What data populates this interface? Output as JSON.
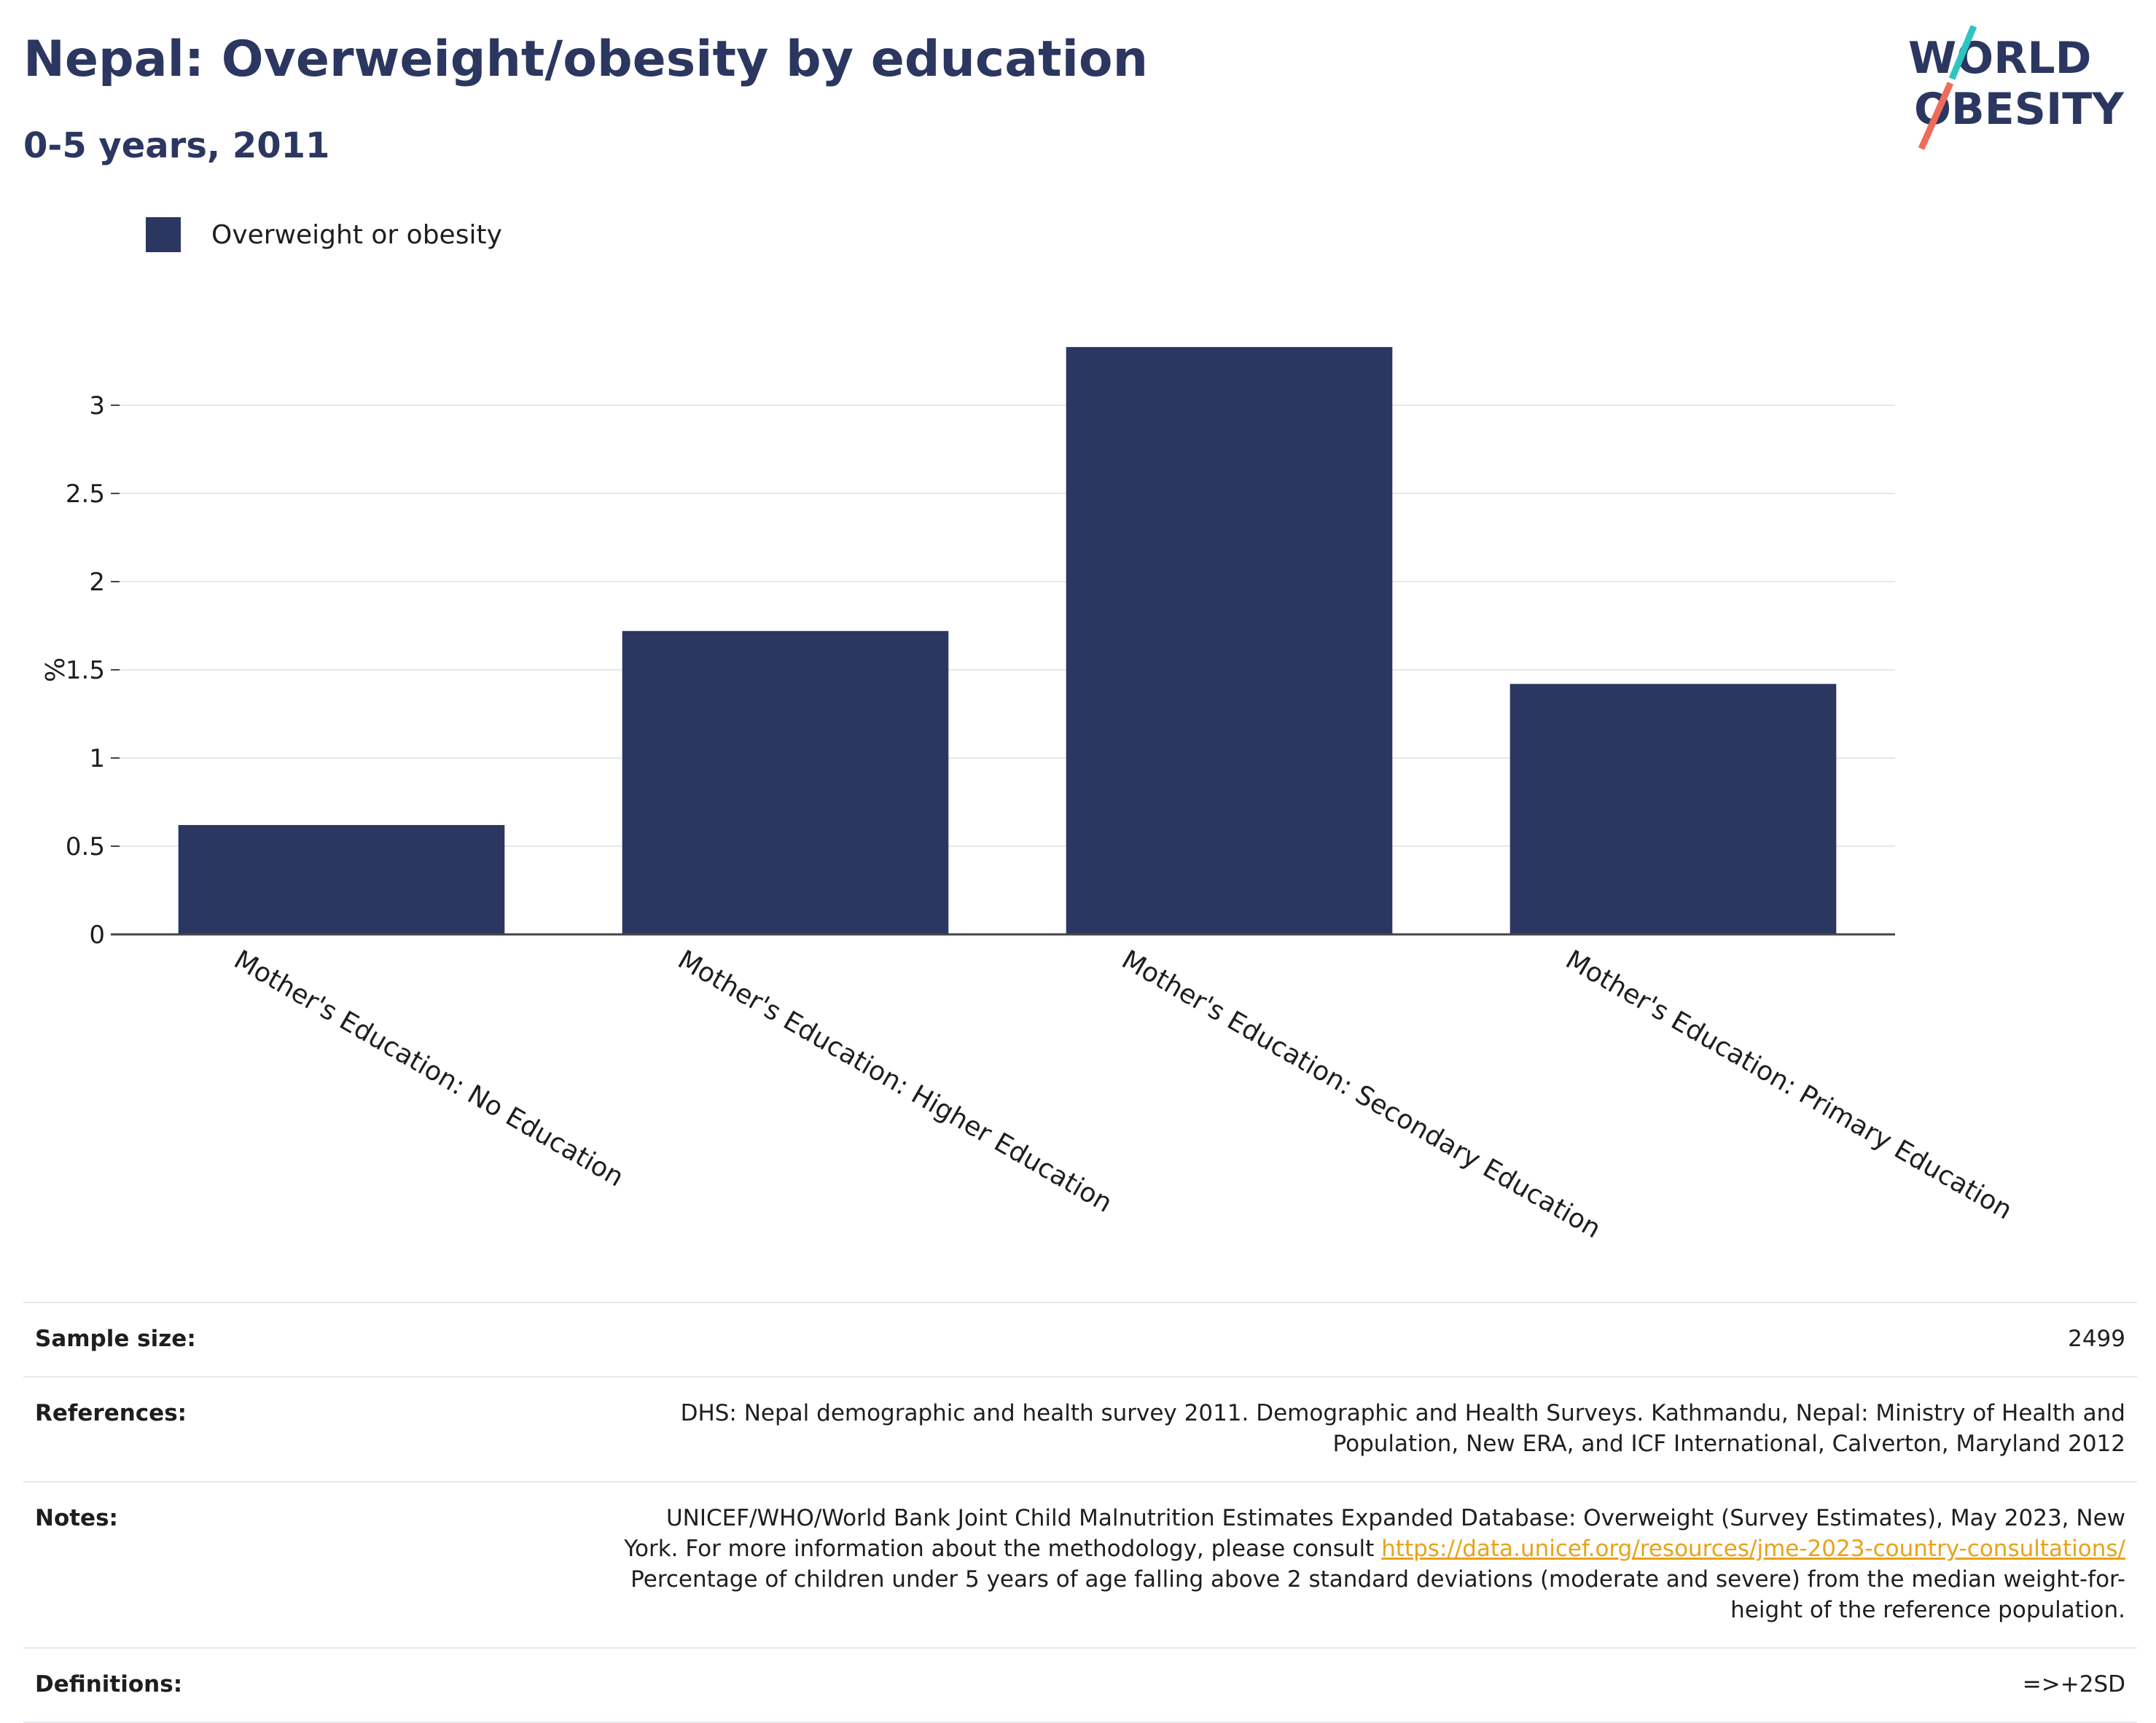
{
  "header": {
    "title": "Nepal: Overweight/obesity by education",
    "subtitle": "0-5 years, 2011"
  },
  "logo": {
    "line1": "WORLD",
    "line2": "OBESITY"
  },
  "colors": {
    "bar": "#2b3760",
    "title": "#2b3760",
    "link": "#e8a317",
    "logo_teal": "#2ec4c1",
    "logo_coral": "#ef6b5a"
  },
  "chart_data": {
    "type": "bar",
    "ylabel": "%",
    "xlabel": "",
    "ylim": [
      0,
      3.33
    ],
    "yticks": [
      0,
      0.5,
      1,
      1.5,
      2,
      2.5,
      3
    ],
    "ytick_labels": [
      "0",
      "0.5",
      "1",
      "1.5",
      "2",
      "2.5",
      "3"
    ],
    "grid": true,
    "legend_position": "top-left",
    "categories": [
      "Mother's Education: No Education",
      "Mother's Education: Higher Education",
      "Mother's Education: Secondary Education",
      "Mother's Education: Primary Education"
    ],
    "series": [
      {
        "name": "Overweight or obesity",
        "values": [
          0.62,
          1.72,
          3.33,
          1.42
        ]
      }
    ]
  },
  "info": {
    "sample_size": {
      "label": "Sample size:",
      "value": "2499"
    },
    "references": {
      "label": "References:",
      "value": "DHS: Nepal demographic and health survey 2011. Demographic and Health Surveys. Kathmandu, Nepal: Ministry of Health and Population, New ERA, and ICF International, Calverton, Maryland 2012"
    },
    "notes": {
      "label": "Notes:",
      "text_before": "UNICEF/WHO/World Bank Joint Child Malnutrition Estimates Expanded Database: Overweight (Survey Estimates), May 2023, New York. For more information about the methodology, please consult ",
      "link": "https://data.unicef.org/resources/jme-2023-country-consultations/",
      "text_after": " Percentage of children under 5 years of age falling above 2 standard deviations (moderate and severe) from the median weight-for-height of the reference population."
    },
    "definitions": {
      "label": "Definitions:",
      "value": "=>+2SD"
    }
  }
}
